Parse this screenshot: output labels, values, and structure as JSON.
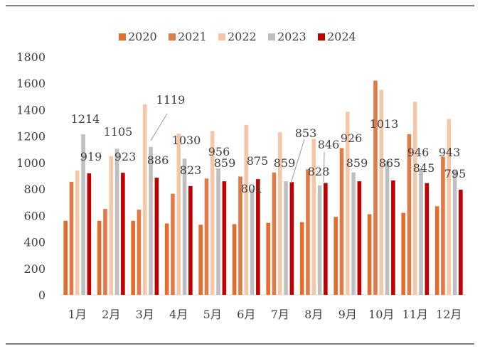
{
  "chart_data": {
    "type": "bar",
    "title": "",
    "xlabel": "",
    "ylabel": "",
    "ylim": [
      0,
      1800
    ],
    "yticks": [
      0,
      200,
      400,
      600,
      800,
      1000,
      1200,
      1400,
      1600,
      1800
    ],
    "grid": false,
    "legend": "top",
    "categories": [
      "1月",
      "2月",
      "3月",
      "4月",
      "5月",
      "6月",
      "7月",
      "8月",
      "9月",
      "10月",
      "11月",
      "12月"
    ],
    "series": [
      {
        "name": "2020",
        "color": "#e46c2c",
        "values": [
          560,
          560,
          560,
          540,
          530,
          535,
          545,
          550,
          590,
          610,
          620,
          670
        ]
      },
      {
        "name": "2021",
        "color": "#e07b47",
        "values": [
          855,
          650,
          645,
          765,
          880,
          895,
          925,
          950,
          1110,
          1620,
          1215,
          1045
        ]
      },
      {
        "name": "2022",
        "color": "#f4c7a9",
        "values": [
          940,
          1050,
          1440,
          1220,
          1240,
          1285,
          1230,
          1180,
          1385,
          1550,
          1460,
          1330
        ]
      },
      {
        "name": "2023",
        "color": "#bfbfbf",
        "values": [
          1214,
          1105,
          1119,
          1030,
          956,
          801,
          859,
          828,
          926,
          1013,
          946,
          943
        ]
      },
      {
        "name": "2024",
        "color": "#c00000",
        "values": [
          919,
          923,
          886,
          823,
          859,
          875,
          853,
          846,
          859,
          865,
          845,
          795
        ]
      }
    ],
    "data_labels": [
      {
        "series": "2023",
        "month": "1月",
        "text": "1214"
      },
      {
        "series": "2023",
        "month": "2月",
        "text": "1105"
      },
      {
        "series": "2023",
        "month": "3月",
        "text": "1119"
      },
      {
        "series": "2023",
        "month": "4月",
        "text": "1030"
      },
      {
        "series": "2023",
        "month": "5月",
        "text": "956"
      },
      {
        "series": "2023",
        "month": "6月",
        "text": "801"
      },
      {
        "series": "2023",
        "month": "7月",
        "text": "859"
      },
      {
        "series": "2023",
        "month": "8月",
        "text": "828"
      },
      {
        "series": "2023",
        "month": "9月",
        "text": "926"
      },
      {
        "series": "2023",
        "month": "10月",
        "text": "1013"
      },
      {
        "series": "2023",
        "month": "11月",
        "text": "946"
      },
      {
        "series": "2023",
        "month": "12月",
        "text": "943"
      },
      {
        "series": "2024",
        "month": "1月",
        "text": "919"
      },
      {
        "series": "2024",
        "month": "2月",
        "text": "923"
      },
      {
        "series": "2024",
        "month": "3月",
        "text": "886"
      },
      {
        "series": "2024",
        "month": "4月",
        "text": "823"
      },
      {
        "series": "2024",
        "month": "5月",
        "text": "859"
      },
      {
        "series": "2024",
        "month": "6月",
        "text": "875"
      },
      {
        "series": "2024",
        "month": "7月",
        "text": "853"
      },
      {
        "series": "2024",
        "month": "8月",
        "text": "846"
      },
      {
        "series": "2024",
        "month": "9月",
        "text": "859"
      },
      {
        "series": "2024",
        "month": "10月",
        "text": "865"
      },
      {
        "series": "2024",
        "month": "11月",
        "text": "845"
      },
      {
        "series": "2024",
        "month": "12月",
        "text": "795"
      }
    ]
  }
}
